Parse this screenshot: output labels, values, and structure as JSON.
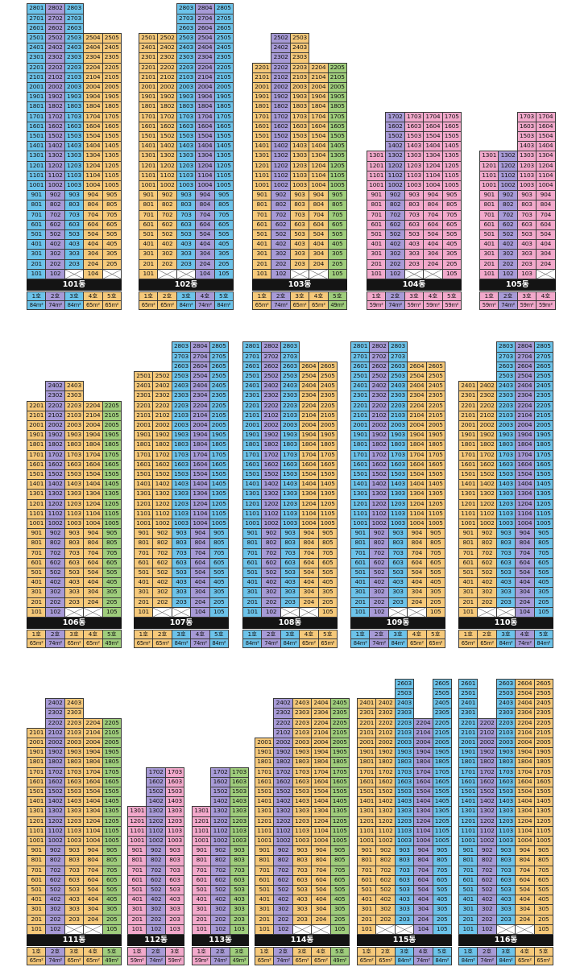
{
  "palette": {
    "orange": "#f6c97a",
    "blue": "#6cc3ea",
    "purple": "#a79ad6",
    "green": "#9fcd7c",
    "pink": "#f2a9cb"
  },
  "buildings": [
    {
      "name": "101동",
      "lines": [
        "1호",
        "2호",
        "3호",
        "4호",
        "5호"
      ],
      "sizes": [
        "84m²",
        "74m²",
        "84m²",
        "65m²",
        "65m²"
      ],
      "sizeColors": [
        "blue",
        "purple",
        "blue",
        "orange",
        "orange"
      ],
      "floors": [
        28,
        28,
        28,
        25,
        25
      ],
      "empty": [
        "103",
        "105"
      ]
    },
    {
      "name": "102동",
      "lines": [
        "1호",
        "2호",
        "3호",
        "4호",
        "5호"
      ],
      "sizes": [
        "65m²",
        "65m²",
        "84m²",
        "74m²",
        "84m²"
      ],
      "sizeColors": [
        "orange",
        "orange",
        "blue",
        "purple",
        "blue"
      ],
      "floors": [
        25,
        25,
        28,
        28,
        28
      ],
      "empty": [
        "102",
        "103"
      ]
    },
    {
      "name": "103동",
      "lines": [
        "1호",
        "2호",
        "3호",
        "4호",
        "5호"
      ],
      "sizes": [
        "65m²",
        "74m²",
        "65m²",
        "65m²",
        "49m²"
      ],
      "sizeColors": [
        "orange",
        "purple",
        "orange",
        "orange",
        "green"
      ],
      "floors": [
        22,
        25,
        25,
        22,
        22
      ],
      "empty": [
        "103",
        "104"
      ]
    },
    {
      "name": "104동",
      "lines": [
        "1호",
        "2호",
        "3호",
        "4호",
        "5호"
      ],
      "sizes": [
        "59m²",
        "74m²",
        "59m²",
        "59m²",
        "59m²"
      ],
      "sizeColors": [
        "pink",
        "purple",
        "pink",
        "pink",
        "pink"
      ],
      "floors": [
        13,
        17,
        17,
        17,
        17
      ],
      "empty": [
        "103",
        "104"
      ]
    },
    {
      "name": "105동",
      "lines": [
        "1호",
        "2호",
        "3호",
        "4호"
      ],
      "sizes": [
        "59m²",
        "74m²",
        "59m²",
        "59m²"
      ],
      "sizeColors": [
        "pink",
        "purple",
        "pink",
        "pink"
      ],
      "floors": [
        13,
        13,
        17,
        17
      ],
      "empty": [
        "104"
      ]
    },
    {
      "name": "106동",
      "lines": [
        "1호",
        "2호",
        "3호",
        "4호",
        "5호"
      ],
      "sizes": [
        "65m²",
        "74m²",
        "65m²",
        "65m²",
        "49m²"
      ],
      "sizeColors": [
        "orange",
        "purple",
        "orange",
        "orange",
        "green"
      ],
      "floors": [
        22,
        24,
        24,
        22,
        22
      ],
      "empty": [
        "103",
        "104"
      ]
    },
    {
      "name": "107동",
      "lines": [
        "1호",
        "2호",
        "3호",
        "4호",
        "5호"
      ],
      "sizes": [
        "65m²",
        "65m²",
        "84m²",
        "74m²",
        "84m²"
      ],
      "sizeColors": [
        "orange",
        "orange",
        "blue",
        "purple",
        "blue"
      ],
      "floors": [
        25,
        25,
        28,
        28,
        28
      ],
      "empty": [
        "102",
        "103"
      ]
    },
    {
      "name": "108동",
      "lines": [
        "1호",
        "2호",
        "3호",
        "4호",
        "5호"
      ],
      "sizes": [
        "84m²",
        "74m²",
        "84m²",
        "65m²",
        "65m²"
      ],
      "sizeColors": [
        "blue",
        "purple",
        "blue",
        "orange",
        "orange"
      ],
      "floors": [
        28,
        28,
        28,
        26,
        26
      ],
      "empty": [
        "103",
        "104"
      ]
    },
    {
      "name": "109동",
      "lines": [
        "1호",
        "2호",
        "3호",
        "4호",
        "5호"
      ],
      "sizes": [
        "84m²",
        "74m²",
        "84m²",
        "65m²",
        "65m²"
      ],
      "sizeColors": [
        "blue",
        "purple",
        "blue",
        "orange",
        "orange"
      ],
      "floors": [
        28,
        28,
        28,
        26,
        26
      ],
      "empty": [
        "103",
        "104"
      ]
    },
    {
      "name": "110동",
      "lines": [
        "1호",
        "2호",
        "3호",
        "4호",
        "5호"
      ],
      "sizes": [
        "65m²",
        "65m²",
        "84m²",
        "74m²",
        "84m²"
      ],
      "sizeColors": [
        "orange",
        "orange",
        "blue",
        "purple",
        "blue"
      ],
      "floors": [
        24,
        24,
        28,
        28,
        28
      ],
      "empty": [
        "102",
        "103"
      ]
    },
    {
      "name": "111동",
      "lines": [
        "1호",
        "2호",
        "3호",
        "4호",
        "5호"
      ],
      "sizes": [
        "65m²",
        "74m²",
        "65m²",
        "65m²",
        "49m²"
      ],
      "sizeColors": [
        "orange",
        "purple",
        "orange",
        "orange",
        "green"
      ],
      "floors": [
        21,
        24,
        24,
        22,
        22
      ],
      "empty": [
        "103",
        "104"
      ]
    },
    {
      "name": "112동",
      "lines": [
        "1호",
        "2호",
        "3호"
      ],
      "sizes": [
        "59m²",
        "74m²",
        "59m²"
      ],
      "sizeColors": [
        "pink",
        "purple",
        "pink"
      ],
      "floors": [
        13,
        17,
        17
      ],
      "empty": []
    },
    {
      "name": "113동",
      "lines": [
        "1호",
        "2호",
        "3호"
      ],
      "sizes": [
        "59m²",
        "74m²",
        "49m²"
      ],
      "sizeColors": [
        "pink",
        "purple",
        "green"
      ],
      "floors": [
        13,
        17,
        17
      ],
      "empty": []
    },
    {
      "name": "114동",
      "lines": [
        "1호",
        "2호",
        "3호",
        "4호",
        "5호"
      ],
      "sizes": [
        "65m²",
        "74m²",
        "65m²",
        "65m²",
        "49m²"
      ],
      "sizeColors": [
        "orange",
        "purple",
        "orange",
        "orange",
        "green"
      ],
      "floors": [
        20,
        24,
        24,
        24,
        24
      ],
      "empty": [
        "103",
        "104"
      ]
    },
    {
      "name": "115동",
      "lines": [
        "1호",
        "2호",
        "3호",
        "4호",
        "5호"
      ],
      "sizes": [
        "65m²",
        "65m²",
        "84m²",
        "74m²",
        "84m²"
      ],
      "sizeColors": [
        "orange",
        "orange",
        "blue",
        "purple",
        "blue"
      ],
      "floors": [
        24,
        24,
        26,
        22,
        26
      ],
      "empty": [
        "102",
        "103"
      ]
    },
    {
      "name": "116동",
      "lines": [
        "1호",
        "2호",
        "3호",
        "4호",
        "5호"
      ],
      "sizes": [
        "84m²",
        "74m²",
        "84m²",
        "65m²",
        "65m²"
      ],
      "sizeColors": [
        "blue",
        "purple",
        "blue",
        "orange",
        "orange"
      ],
      "floors": [
        26,
        22,
        26,
        26,
        26
      ],
      "empty": [
        "103",
        "104"
      ]
    }
  ]
}
